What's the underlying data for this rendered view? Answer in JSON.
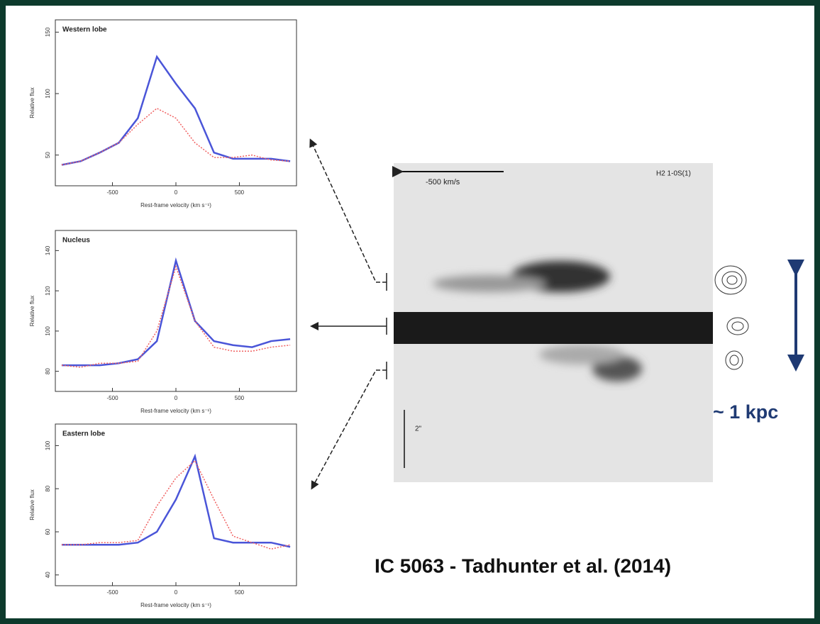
{
  "chart_data": [
    {
      "type": "line",
      "title": "Western lobe",
      "xlabel": "Rest-frame velocity (km s⁻¹)",
      "ylabel": "Relative flux",
      "x": [
        -900,
        -750,
        -600,
        -450,
        -300,
        -150,
        0,
        150,
        300,
        450,
        600,
        750,
        900
      ],
      "series": [
        {
          "color": "#4a55d8",
          "values": [
            42,
            45,
            52,
            60,
            80,
            130,
            108,
            88,
            52,
            47,
            47,
            47,
            45
          ]
        },
        {
          "color": "#f06060",
          "values": [
            42,
            45,
            52,
            60,
            75,
            88,
            80,
            60,
            48,
            48,
            50,
            46,
            45
          ]
        }
      ],
      "xlim": [
        -950,
        950
      ],
      "ylim": [
        25,
        160
      ],
      "xticks": [
        -500,
        0,
        500
      ],
      "yticks": [
        50,
        100,
        150
      ]
    },
    {
      "type": "line",
      "title": "Nucleus",
      "xlabel": "Rest-frame velocity (km s⁻¹)",
      "ylabel": "Relative flux",
      "x": [
        -900,
        -750,
        -600,
        -450,
        -300,
        -150,
        0,
        150,
        300,
        450,
        600,
        750,
        900
      ],
      "series": [
        {
          "color": "#4a55d8",
          "values": [
            83,
            83,
            83,
            84,
            86,
            95,
            135,
            105,
            95,
            93,
            92,
            95,
            96
          ]
        },
        {
          "color": "#f06060",
          "values": [
            83,
            82,
            84,
            84,
            85,
            100,
            132,
            105,
            92,
            90,
            90,
            92,
            93
          ]
        }
      ],
      "xlim": [
        -950,
        950
      ],
      "ylim": [
        70,
        150
      ],
      "xticks": [
        -500,
        0,
        500
      ],
      "yticks": [
        80,
        100,
        120,
        140
      ]
    },
    {
      "type": "line",
      "title": "Eastern lobe",
      "xlabel": "Rest-frame velocity (km s⁻¹)",
      "ylabel": "Relative flux",
      "x": [
        -900,
        -750,
        -600,
        -450,
        -300,
        -150,
        0,
        150,
        300,
        450,
        600,
        750,
        900
      ],
      "series": [
        {
          "color": "#4a55d8",
          "values": [
            54,
            54,
            54,
            54,
            55,
            60,
            75,
            95,
            57,
            55,
            55,
            55,
            53
          ]
        },
        {
          "color": "#f06060",
          "values": [
            54,
            54,
            55,
            55,
            56,
            72,
            85,
            93,
            75,
            58,
            55,
            52,
            54
          ]
        }
      ],
      "xlim": [
        -950,
        950
      ],
      "ylim": [
        35,
        110
      ],
      "xticks": [
        -500,
        0,
        500
      ],
      "yticks": [
        40,
        60,
        80,
        100
      ]
    }
  ],
  "image": {
    "scale_label": "-500 km/s",
    "line_label": "H2 1-0S(1)",
    "size_label": "2\""
  },
  "scale": "~ 1 kpc",
  "caption": "IC 5063 - Tadhunter et al. (2014)"
}
